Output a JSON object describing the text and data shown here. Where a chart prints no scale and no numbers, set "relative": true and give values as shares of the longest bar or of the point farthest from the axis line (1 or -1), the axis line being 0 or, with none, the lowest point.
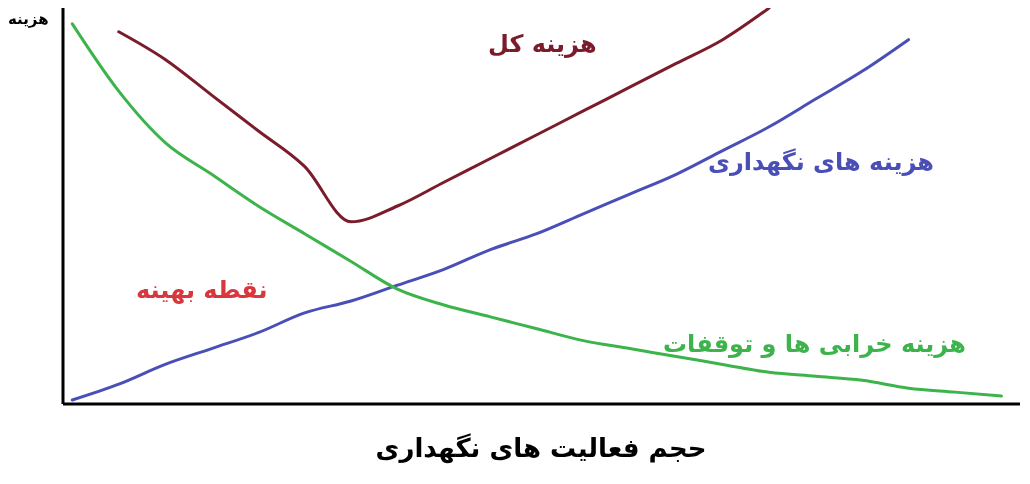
{
  "chart_data": {
    "type": "line",
    "xlabel": "حجم فعالیت های نگهداری",
    "ylabel": "هزینه",
    "relative": true,
    "categories": [
      null,
      null,
      null,
      null,
      null,
      null,
      null,
      null,
      null,
      null,
      null,
      null,
      null,
      null,
      null,
      null,
      null,
      null,
      null,
      null,
      null
    ],
    "series": [
      {
        "name": "هزینه کل",
        "color": "#7b1c2c",
        "values": [
          null,
          0.94,
          0.87,
          0.78,
          0.69,
          0.6,
          0.46,
          0.5,
          0.56,
          0.62,
          0.68,
          0.74,
          0.8,
          0.86,
          0.92,
          1.0,
          null,
          null,
          null,
          null,
          null
        ]
      },
      {
        "name": "هزینه های نگهداری",
        "color": "#4a4fb8",
        "values": [
          0.01,
          0.05,
          0.1,
          0.14,
          0.18,
          0.23,
          0.26,
          0.3,
          0.34,
          0.39,
          0.43,
          0.48,
          0.53,
          0.58,
          0.64,
          0.7,
          0.77,
          0.84,
          0.92,
          null,
          null
        ]
      },
      {
        "name": "هزینه خرابی ها و توقفات",
        "color": "#3cb44b",
        "values": [
          0.96,
          0.79,
          0.66,
          0.58,
          0.5,
          0.43,
          0.36,
          0.29,
          0.25,
          0.22,
          0.19,
          0.16,
          0.14,
          0.12,
          0.1,
          0.08,
          0.07,
          0.06,
          0.04,
          0.03,
          0.02
        ]
      }
    ],
    "annotations": [
      "نقطه بهینه"
    ]
  }
}
